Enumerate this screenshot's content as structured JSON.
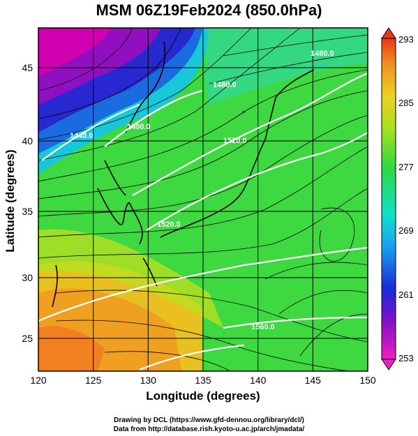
{
  "title": "MSM 06Z19Feb2024 (850.0hPa)",
  "xlabel": "Longitude (degrees)",
  "ylabel": "Latitude  (degrees)",
  "credits": {
    "line1": "Drawing by DCL (https://www.gfd-dennou.org/library/dcl/)",
    "line2": "Data from http://database.rish.kyoto-u.ac.jp/arch/jmadata/"
  },
  "map": {
    "lon_range": [
      120,
      150
    ],
    "lat_range": [
      22.5,
      47.6
    ],
    "x_ticks": [
      "120",
      "125",
      "130",
      "135",
      "140",
      "145",
      "150"
    ],
    "y_ticks": [
      "25",
      "30",
      "35",
      "40",
      "45"
    ],
    "contour_labels": [
      "1440.0",
      "1400.0",
      "1480.0",
      "1480.0",
      "1520.0",
      "1520.0",
      "1560.0"
    ],
    "field": "temperature",
    "streamlines": true,
    "grid": true
  },
  "colorbar": {
    "ticks": [
      "253",
      "261",
      "269",
      "277",
      "285",
      "293"
    ],
    "min": 253,
    "max": 293
  },
  "colors": {
    "magenta": "#d000b0",
    "blue": "#1a2ad8",
    "cyan": "#18d0d0",
    "green": "#3ed840",
    "yellow": "#c8e020",
    "orange": "#f0a010",
    "red": "#e84020"
  }
}
